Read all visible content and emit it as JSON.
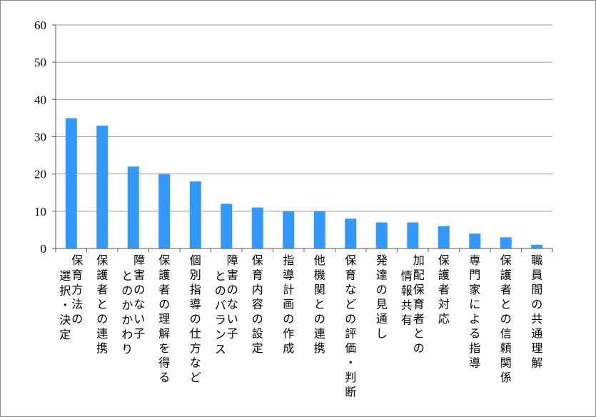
{
  "chart_data": {
    "type": "bar",
    "title": "",
    "xlabel": "",
    "ylabel": "",
    "ylim": [
      0,
      60
    ],
    "yticks": [
      0,
      10,
      20,
      30,
      40,
      50,
      60
    ],
    "grid": true,
    "legend": "none",
    "bar_color": "#3399ff",
    "categories": [
      "保育方法の選択・決定",
      "保護者との連携",
      "障害のない子とのかかわり",
      "保護者の理解を得る",
      "個別指導の仕方など",
      "障害のない子とのバランス",
      "保育内容の設定",
      "指導計画の作成",
      "他機関との連携",
      "保育などの評価・判断",
      "発達の見通し",
      "加配保育者との情報共有",
      "保護者対応",
      "専門家による指導",
      "保護者との信頼関係",
      "職員間の共通理解"
    ],
    "label_columns": [
      [
        "保育方法の",
        "選択・決定"
      ],
      [
        "保護者との連携"
      ],
      [
        "障害のない子",
        "とのかかわり"
      ],
      [
        "保護者の理解を得る"
      ],
      [
        "個別指導の仕方など"
      ],
      [
        "障害のない子",
        "とのバランス"
      ],
      [
        "保育内容の設定"
      ],
      [
        "指導計画の作成"
      ],
      [
        "他機関との連携"
      ],
      [
        "保育などの評価・判断"
      ],
      [
        "発達の見通し"
      ],
      [
        "加配保育者との",
        "情報共有"
      ],
      [
        "保護者対応"
      ],
      [
        "専門家による指導"
      ],
      [
        "保護者との信頼関係"
      ],
      [
        "職員間の共通理解"
      ]
    ],
    "values": [
      35,
      33,
      22,
      20,
      18,
      12,
      11,
      10,
      10,
      8,
      7,
      7,
      6,
      4,
      3,
      1
    ]
  }
}
